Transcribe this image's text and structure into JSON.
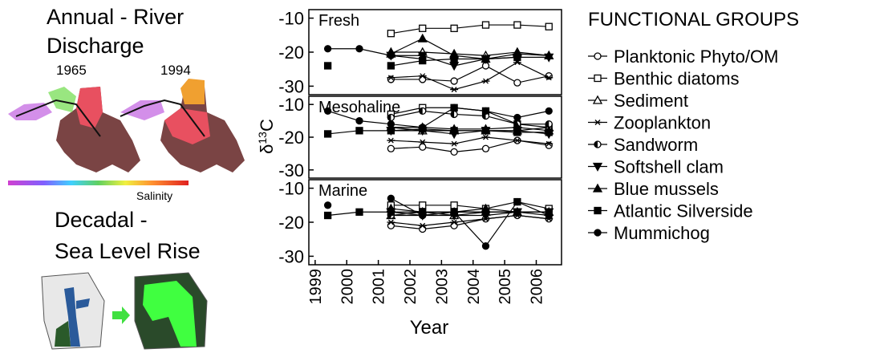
{
  "left_panel": {
    "annual_title": [
      "Annual - River",
      "Discharge"
    ],
    "years": [
      "1965",
      "1994"
    ],
    "salinity_label": "Salinity",
    "decadal_title": [
      "Decadal -",
      "Sea Level Rise"
    ]
  },
  "shared_axes": {
    "ylabel": {
      "symbol": "δ",
      "sup": "13",
      "element": "C"
    },
    "xlabel": "Year"
  },
  "legend": {
    "title": "FUNCTIONAL GROUPS"
  },
  "chart_data": [
    {
      "type": "line",
      "title": "Fresh",
      "title_color": "#8b5a2b",
      "x": [
        1999.4,
        2000.4,
        2001.4,
        2002.4,
        2003.4,
        2004.4,
        2005.4,
        2006.4
      ],
      "xlim": [
        1998.8,
        2006.8
      ],
      "ylim": [
        -32.5,
        -7.5
      ],
      "yticks": [
        -10,
        -20,
        -30
      ],
      "series": [
        {
          "name": "Planktonic Phyto/OM",
          "marker": "circle-open",
          "color": "#000",
          "values": [
            null,
            null,
            -28,
            -28,
            -28.5,
            -24,
            -29,
            -27
          ]
        },
        {
          "name": "Benthic diatoms",
          "marker": "square-open",
          "color": "#000",
          "values": [
            null,
            null,
            -14.5,
            -13,
            -13,
            -12,
            -12,
            -12.5
          ]
        },
        {
          "name": "Sediment",
          "marker": "triangle-open",
          "color": "#000",
          "values": [
            null,
            null,
            -20,
            -20,
            -20.5,
            -21,
            -20,
            -21
          ]
        },
        {
          "name": "Zooplankton",
          "marker": "star",
          "color": "#000",
          "values": [
            null,
            null,
            -27.5,
            -27,
            -31,
            -28.5,
            -23,
            -27.5
          ]
        },
        {
          "name": "Sandworm",
          "marker": "half-circle",
          "color": "#000",
          "values": [
            null,
            null,
            null,
            null,
            null,
            null,
            null,
            null
          ]
        },
        {
          "name": "Softshell clam",
          "marker": "triangle-down",
          "color": "#000",
          "values": [
            null,
            null,
            -21,
            -21,
            -24,
            -22,
            -21.5,
            -21.5
          ]
        },
        {
          "name": "Blue mussels",
          "marker": "triangle-up",
          "color": "#000",
          "values": [
            null,
            null,
            -20.5,
            -16,
            -21,
            -22,
            -20.5,
            -21
          ]
        },
        {
          "name": "Atlantic Silverside",
          "marker": "square-filled",
          "color": "#000",
          "values": [
            -24,
            null,
            -24,
            -22.5,
            -22,
            -22,
            -21.5,
            null
          ]
        },
        {
          "name": "Mummichog",
          "marker": "circle-filled",
          "color": "#000",
          "values": [
            -19,
            -19,
            -21,
            -22,
            null,
            null,
            null,
            null
          ]
        }
      ]
    },
    {
      "type": "line",
      "title": "Mesohaline",
      "title_color": "#2e9b2e",
      "x": [
        1999.4,
        2000.4,
        2001.4,
        2002.4,
        2003.4,
        2004.4,
        2005.4,
        2006.4
      ],
      "xlim": [
        1998.8,
        2006.8
      ],
      "ylim": [
        -32.5,
        -7.5
      ],
      "yticks": [
        -10,
        -20,
        -30
      ],
      "series": [
        {
          "name": "Planktonic Phyto/OM",
          "marker": "circle-open",
          "color": "#000",
          "values": [
            null,
            null,
            -23.5,
            -23,
            -24.5,
            -23.5,
            -21,
            -22.5
          ]
        },
        {
          "name": "Benthic diatoms",
          "marker": "square-open",
          "color": "#000",
          "values": [
            null,
            null,
            -13,
            -11,
            -11,
            -12,
            -16,
            -17
          ]
        },
        {
          "name": "Sediment",
          "marker": "triangle-open",
          "color": "#000",
          "values": [
            null,
            null,
            -17,
            -18,
            -18,
            -18,
            -18,
            -17
          ]
        },
        {
          "name": "Zooplankton",
          "marker": "star",
          "color": "#000",
          "values": [
            null,
            null,
            -21,
            -21.5,
            -22,
            -20,
            -21,
            -22
          ]
        },
        {
          "name": "Sandworm",
          "marker": "half-circle",
          "color": "#000",
          "values": [
            null,
            null,
            -14,
            -12,
            -13,
            -13.5,
            -16,
            -16
          ]
        },
        {
          "name": "Softshell clam",
          "marker": "triangle-down",
          "color": "#000",
          "values": [
            null,
            null,
            -18,
            -18,
            -19,
            -18,
            -18,
            -19
          ]
        },
        {
          "name": "Blue mussels",
          "marker": "triangle-up",
          "color": "#000",
          "values": [
            null,
            null,
            -17,
            -17,
            -17.5,
            -17.5,
            -17,
            -18
          ]
        },
        {
          "name": "Atlantic Silverside",
          "marker": "square-filled",
          "color": "#000",
          "values": [
            -19,
            -18,
            -18,
            -17.5,
            -18,
            -18,
            -18.5,
            -18.5
          ]
        },
        {
          "name": "Mummichog",
          "marker": "circle-filled",
          "color": "#000",
          "values": [
            -12,
            -15,
            -16,
            -17,
            -11,
            -12,
            -14,
            -12
          ]
        }
      ]
    },
    {
      "type": "line",
      "title": "Marine",
      "title_color": "#4040a0",
      "x": [
        1999.4,
        2000.4,
        2001.4,
        2002.4,
        2003.4,
        2004.4,
        2005.4,
        2006.4
      ],
      "xlim": [
        1998.8,
        2006.8
      ],
      "ylim": [
        -32.5,
        -7.5
      ],
      "yticks": [
        -10,
        -20,
        -30
      ],
      "xticks": [
        1999,
        2000,
        2001,
        2002,
        2003,
        2004,
        2005,
        2006
      ],
      "series": [
        {
          "name": "Planktonic Phyto/OM",
          "marker": "circle-open",
          "color": "#000",
          "values": [
            null,
            null,
            -21,
            -22,
            -21,
            -19,
            -18,
            -19
          ]
        },
        {
          "name": "Benthic diatoms",
          "marker": "square-open",
          "color": "#000",
          "values": [
            null,
            null,
            -15,
            -15,
            -15,
            -16,
            -14,
            -16
          ]
        },
        {
          "name": "Sediment",
          "marker": "triangle-open",
          "color": "#000",
          "values": [
            null,
            null,
            -18,
            -17,
            -18,
            -17,
            -17,
            -17
          ]
        },
        {
          "name": "Zooplankton",
          "marker": "star",
          "color": "#000",
          "values": [
            null,
            null,
            -20,
            -21,
            -20,
            -19,
            -18,
            -19
          ]
        },
        {
          "name": "Sandworm",
          "marker": "half-circle",
          "color": "#000",
          "values": [
            null,
            null,
            -18,
            -18,
            -17,
            -17,
            -17,
            -18
          ]
        },
        {
          "name": "Softshell clam",
          "marker": "triangle-down",
          "color": "#000",
          "values": [
            null,
            null,
            -17,
            -18,
            -18,
            -18,
            -17,
            -17
          ]
        },
        {
          "name": "Blue mussels",
          "marker": "triangle-up",
          "color": "#000",
          "values": [
            null,
            null,
            -16,
            -17,
            -17,
            -16,
            -17,
            -17
          ]
        },
        {
          "name": "Atlantic Silverside",
          "marker": "square-filled",
          "color": "#000",
          "values": [
            -18,
            -17,
            -17,
            -17,
            -17,
            -17,
            -17,
            -17
          ]
        },
        {
          "name": "Mummichog",
          "marker": "circle-filled",
          "color": "#000",
          "values": [
            -15,
            null,
            -13,
            -18,
            -17,
            -27,
            -14,
            -18
          ]
        }
      ]
    }
  ]
}
